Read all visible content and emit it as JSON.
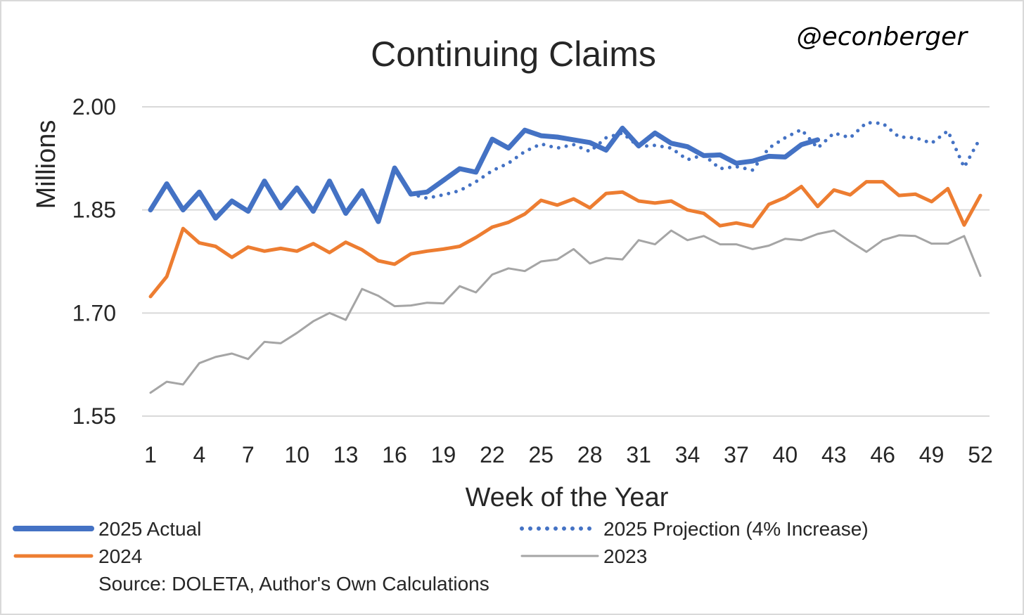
{
  "chart_data": {
    "type": "line",
    "title": "Continuing Claims",
    "handle": "@econberger",
    "xlabel": "Week of the Year",
    "ylabel": "Millions",
    "xlim": [
      1,
      52
    ],
    "ylim": [
      1.55,
      2.0
    ],
    "x_ticks": [
      "1",
      "4",
      "7",
      "10",
      "13",
      "16",
      "19",
      "22",
      "25",
      "28",
      "31",
      "34",
      "37",
      "40",
      "43",
      "46",
      "49",
      "52"
    ],
    "y_ticks": [
      "1.55",
      "1.70",
      "1.85",
      "2.00"
    ],
    "grid": true,
    "legend_placement": "bottom",
    "source": "Source: DOLETA, Author's Own Calculations",
    "series": [
      {
        "name": "2025 Actual",
        "color": "#4472c4",
        "style": "solid-thick",
        "x": [
          1,
          2,
          3,
          4,
          5,
          6,
          7,
          8,
          9,
          10,
          11,
          12,
          13,
          14,
          15,
          16,
          17,
          18,
          19,
          20,
          21,
          22,
          23,
          24,
          25,
          26,
          27,
          28,
          29,
          30,
          31,
          32,
          33,
          34,
          35,
          36,
          37,
          38,
          39,
          40,
          41,
          42
        ],
        "values": [
          1.85,
          1.888,
          1.85,
          1.876,
          1.838,
          1.863,
          1.848,
          1.892,
          1.853,
          1.882,
          1.848,
          1.892,
          1.845,
          1.878,
          1.833,
          1.911,
          1.873,
          1.876,
          1.893,
          1.91,
          1.905,
          1.953,
          1.94,
          1.966,
          1.958,
          1.956,
          1.952,
          1.948,
          1.937,
          1.969,
          1.943,
          1.962,
          1.947,
          1.942,
          1.929,
          1.93,
          1.918,
          1.921,
          1.928,
          1.927,
          1.945,
          1.952
        ]
      },
      {
        "name": "2025 Projection (4% Increase)",
        "color": "#4472c4",
        "style": "dotted",
        "x": [
          17,
          18,
          19,
          20,
          21,
          22,
          23,
          24,
          25,
          26,
          27,
          28,
          29,
          30,
          31,
          32,
          33,
          34,
          35,
          36,
          37,
          38,
          39,
          40,
          41,
          42,
          43,
          44,
          45,
          46,
          47,
          48,
          49,
          50,
          51,
          52
        ],
        "values": [
          1.873,
          1.867,
          1.872,
          1.878,
          1.891,
          1.907,
          1.918,
          1.935,
          1.946,
          1.94,
          1.945,
          1.935,
          1.955,
          1.962,
          1.942,
          1.944,
          1.94,
          1.923,
          1.93,
          1.91,
          1.913,
          1.908,
          1.94,
          1.955,
          1.967,
          1.94,
          1.962,
          1.955,
          1.977,
          1.976,
          1.956,
          1.955,
          1.947,
          1.965,
          1.912,
          1.955
        ]
      },
      {
        "name": "2024",
        "color": "#ed7d31",
        "style": "solid",
        "x": [
          1,
          2,
          3,
          4,
          5,
          6,
          7,
          8,
          9,
          10,
          11,
          12,
          13,
          14,
          15,
          16,
          17,
          18,
          19,
          20,
          21,
          22,
          23,
          24,
          25,
          26,
          27,
          28,
          29,
          30,
          31,
          32,
          33,
          34,
          35,
          36,
          37,
          38,
          39,
          40,
          41,
          42,
          43,
          44,
          45,
          46,
          47,
          48,
          49,
          50,
          51,
          52
        ],
        "values": [
          1.724,
          1.753,
          1.823,
          1.802,
          1.797,
          1.781,
          1.796,
          1.79,
          1.794,
          1.79,
          1.801,
          1.788,
          1.803,
          1.792,
          1.776,
          1.771,
          1.786,
          1.79,
          1.793,
          1.797,
          1.81,
          1.825,
          1.832,
          1.844,
          1.864,
          1.857,
          1.866,
          1.853,
          1.874,
          1.876,
          1.863,
          1.86,
          1.863,
          1.85,
          1.845,
          1.827,
          1.831,
          1.826,
          1.858,
          1.868,
          1.884,
          1.855,
          1.879,
          1.872,
          1.891,
          1.891,
          1.871,
          1.873,
          1.862,
          1.881,
          1.828,
          1.871
        ]
      },
      {
        "name": "2023",
        "color": "#a5a5a5",
        "style": "solid-thin",
        "x": [
          1,
          2,
          3,
          4,
          5,
          6,
          7,
          8,
          9,
          10,
          11,
          12,
          13,
          14,
          15,
          16,
          17,
          18,
          19,
          20,
          21,
          22,
          23,
          24,
          25,
          26,
          27,
          28,
          29,
          30,
          31,
          32,
          33,
          34,
          35,
          36,
          37,
          38,
          39,
          40,
          41,
          42,
          43,
          44,
          45,
          46,
          47,
          48,
          49,
          50,
          51,
          52
        ],
        "values": [
          1.584,
          1.6,
          1.596,
          1.627,
          1.636,
          1.641,
          1.633,
          1.658,
          1.656,
          1.671,
          1.688,
          1.7,
          1.69,
          1.735,
          1.725,
          1.71,
          1.711,
          1.715,
          1.714,
          1.739,
          1.73,
          1.756,
          1.765,
          1.761,
          1.775,
          1.778,
          1.793,
          1.772,
          1.78,
          1.778,
          1.806,
          1.8,
          1.82,
          1.806,
          1.812,
          1.8,
          1.8,
          1.793,
          1.798,
          1.808,
          1.806,
          1.815,
          1.82,
          1.804,
          1.789,
          1.806,
          1.813,
          1.812,
          1.801,
          1.801,
          1.812,
          1.754
        ]
      }
    ]
  }
}
